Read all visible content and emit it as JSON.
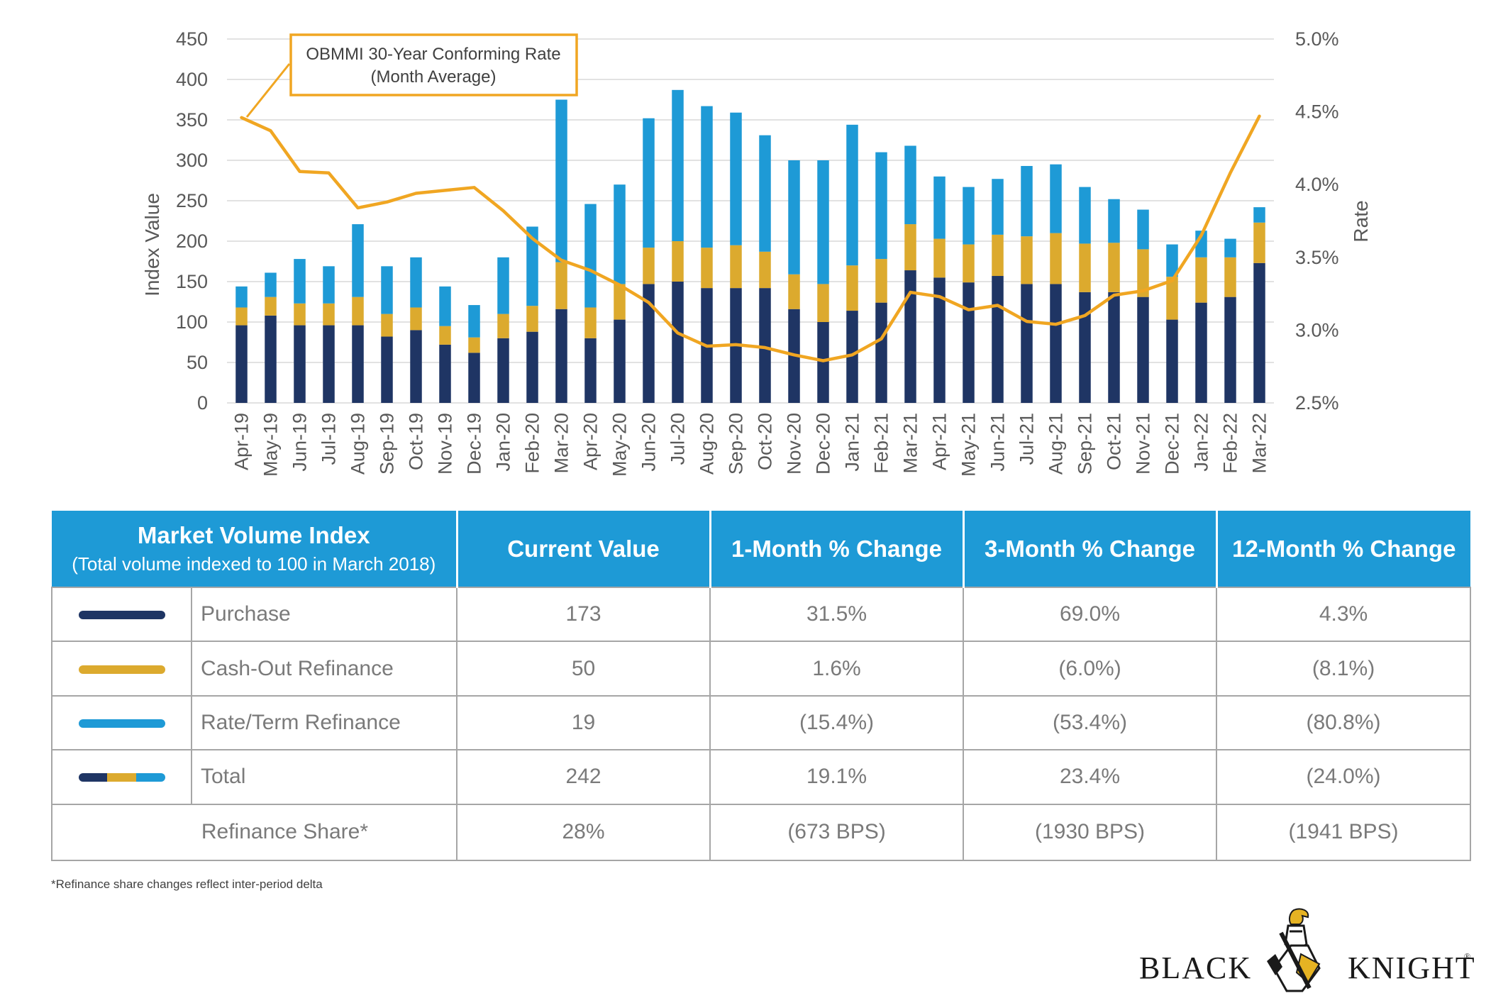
{
  "chart_data": {
    "type": "bar",
    "stacked": true,
    "categories": [
      "Apr-19",
      "May-19",
      "Jun-19",
      "Jul-19",
      "Aug-19",
      "Sep-19",
      "Oct-19",
      "Nov-19",
      "Dec-19",
      "Jan-20",
      "Feb-20",
      "Mar-20",
      "Apr-20",
      "May-20",
      "Jun-20",
      "Jul-20",
      "Aug-20",
      "Sep-20",
      "Oct-20",
      "Nov-20",
      "Dec-20",
      "Jan-21",
      "Feb-21",
      "Mar-21",
      "Apr-21",
      "May-21",
      "Jun-21",
      "Jul-21",
      "Aug-21",
      "Sep-21",
      "Oct-21",
      "Nov-21",
      "Dec-21",
      "Jan-22",
      "Feb-22",
      "Mar-22"
    ],
    "series": [
      {
        "name": "Purchase",
        "color": "#1f3564",
        "values": [
          96,
          108,
          96,
          96,
          96,
          82,
          90,
          72,
          62,
          80,
          88,
          116,
          80,
          103,
          147,
          150,
          142,
          142,
          142,
          116,
          100,
          114,
          124,
          164,
          155,
          149,
          157,
          147,
          147,
          137,
          137,
          131,
          103,
          124,
          131,
          173
        ]
      },
      {
        "name": "Cash-Out Refinance",
        "color": "#dcaa2e",
        "values": [
          22,
          23,
          27,
          27,
          35,
          28,
          28,
          23,
          19,
          30,
          32,
          58,
          38,
          44,
          45,
          50,
          50,
          53,
          45,
          43,
          47,
          56,
          54,
          57,
          48,
          47,
          51,
          59,
          63,
          60,
          61,
          59,
          53,
          56,
          49,
          50
        ]
      },
      {
        "name": "Rate/Term Refinance",
        "color": "#1e9ad6",
        "values": [
          26,
          30,
          55,
          46,
          90,
          59,
          62,
          49,
          40,
          70,
          98,
          201,
          128,
          123,
          160,
          187,
          175,
          164,
          144,
          141,
          153,
          174,
          132,
          97,
          77,
          71,
          69,
          87,
          85,
          70,
          54,
          49,
          40,
          33,
          23,
          19
        ]
      }
    ],
    "line": {
      "name": "OBMMI 30-Year Conforming Rate (Month Average)",
      "color": "#f0a622",
      "axis": "right",
      "values": [
        4.46,
        4.37,
        4.09,
        4.08,
        3.84,
        3.88,
        3.94,
        3.96,
        3.98,
        3.82,
        3.63,
        3.48,
        3.41,
        3.31,
        3.19,
        2.98,
        2.89,
        2.9,
        2.88,
        2.83,
        2.79,
        2.83,
        2.94,
        3.26,
        3.23,
        3.14,
        3.17,
        3.06,
        3.04,
        3.1,
        3.24,
        3.27,
        3.34,
        3.65,
        4.08,
        4.47
      ]
    },
    "annotation": [
      "OBMMI 30-Year Conforming Rate",
      "(Month Average)"
    ],
    "y_left": {
      "label": "Index Value",
      "min": 0,
      "max": 450,
      "ticks": [
        "0",
        "50",
        "100",
        "150",
        "200",
        "250",
        "300",
        "350",
        "400",
        "450"
      ]
    },
    "y_right": {
      "label": "Rate",
      "min": 2.5,
      "max": 5.0,
      "ticks": [
        "2.5%",
        "3.0%",
        "3.5%",
        "4.0%",
        "4.5%",
        "5.0%"
      ]
    },
    "grid": true
  },
  "table": {
    "header": {
      "title": "Market Volume Index",
      "subtitle": "(Total volume indexed to 100 in March 2018)",
      "columns": [
        "Current Value",
        "1-Month % Change",
        "3-Month % Change",
        "12-Month % Change"
      ]
    },
    "rows": [
      {
        "label": "Purchase",
        "swatch": "#1f3564",
        "values": [
          "173",
          "31.5%",
          "69.0%",
          "4.3%"
        ]
      },
      {
        "label": "Cash-Out Refinance",
        "swatch": "#dcaa2e",
        "values": [
          "50",
          "1.6%",
          "(6.0%)",
          "(8.1%)"
        ]
      },
      {
        "label": "Rate/Term Refinance",
        "swatch": "#1e9ad6",
        "values": [
          "19",
          "(15.4%)",
          "(53.4%)",
          "(80.8%)"
        ]
      },
      {
        "label": "Total",
        "swatch": "multi",
        "values": [
          "242",
          "19.1%",
          "23.4%",
          "(24.0%)"
        ]
      }
    ],
    "share_row": {
      "label": "Refinance Share*",
      "values": [
        "28%",
        "(673 BPS)",
        "(1930 BPS)",
        "(1941 BPS)"
      ]
    }
  },
  "footnote": "*Refinance share changes reflect inter-period delta",
  "logo": {
    "left": "BLACK",
    "right": "KNIGHT",
    "mark": "®"
  }
}
